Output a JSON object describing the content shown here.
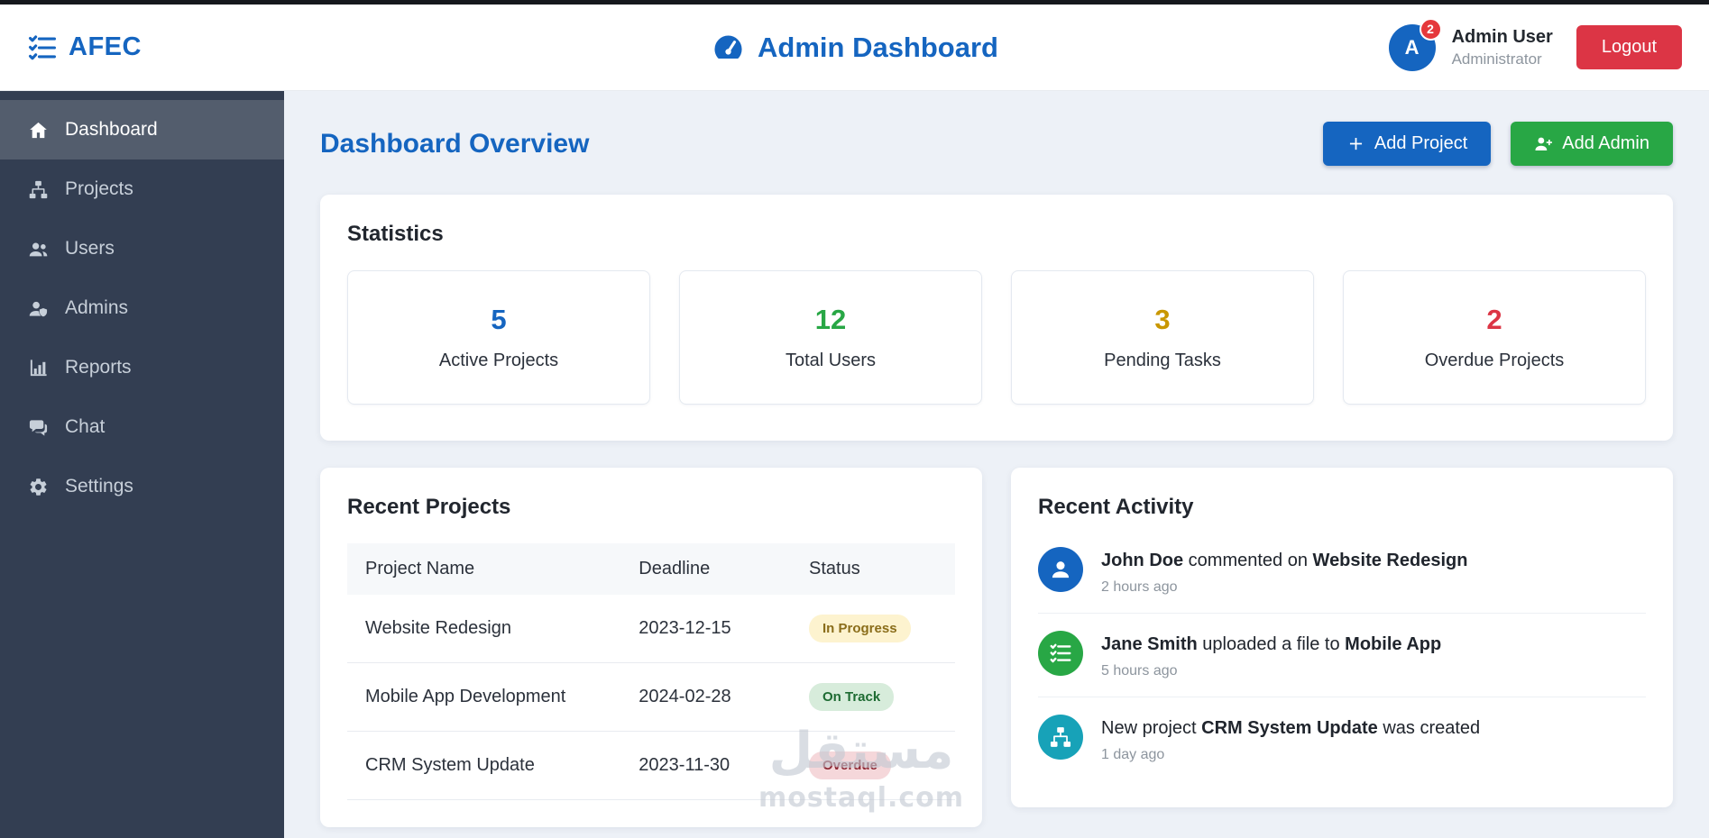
{
  "header": {
    "brand": "AFEC",
    "brand_icon": "list-check",
    "title": "Admin Dashboard",
    "title_icon": "tachometer",
    "user": {
      "initial": "A",
      "badge": "2",
      "name": "Admin User",
      "role": "Administrator"
    },
    "logout_label": "Logout"
  },
  "sidebar": {
    "items": [
      {
        "label": "Dashboard",
        "icon": "home",
        "active": true
      },
      {
        "label": "Projects",
        "icon": "diagram",
        "active": false
      },
      {
        "label": "Users",
        "icon": "users",
        "active": false
      },
      {
        "label": "Admins",
        "icon": "user-shield",
        "active": false
      },
      {
        "label": "Reports",
        "icon": "chart",
        "active": false
      },
      {
        "label": "Chat",
        "icon": "chat",
        "active": false
      },
      {
        "label": "Settings",
        "icon": "gear",
        "active": false
      }
    ]
  },
  "main": {
    "page_title": "Dashboard Overview",
    "buttons": {
      "add_project": {
        "label": "Add Project",
        "icon": "plus",
        "color": "#1565c0"
      },
      "add_admin": {
        "label": "Add Admin",
        "icon": "user-plus",
        "color": "#28a745"
      }
    },
    "statistics": {
      "title": "Statistics",
      "cards": [
        {
          "value": "5",
          "label": "Active Projects",
          "color": "#1565c0"
        },
        {
          "value": "12",
          "label": "Total Users",
          "color": "#28a745"
        },
        {
          "value": "3",
          "label": "Pending Tasks",
          "color": "#c99700"
        },
        {
          "value": "2",
          "label": "Overdue Projects",
          "color": "#dc3545"
        }
      ]
    },
    "recent_projects": {
      "title": "Recent Projects",
      "columns": [
        "Project Name",
        "Deadline",
        "Status"
      ],
      "rows": [
        {
          "name": "Website Redesign",
          "deadline": "2023-12-15",
          "status": "In Progress",
          "status_type": "warning"
        },
        {
          "name": "Mobile App Development",
          "deadline": "2024-02-28",
          "status": "On Track",
          "status_type": "success"
        },
        {
          "name": "CRM System Update",
          "deadline": "2023-11-30",
          "status": "Overdue",
          "status_type": "danger"
        }
      ]
    },
    "recent_activity": {
      "title": "Recent Activity",
      "items": [
        {
          "icon": "user",
          "icon_color": "#1565c0",
          "segments": [
            {
              "text": "John Doe",
              "bold": true
            },
            {
              "text": " commented on ",
              "bold": false
            },
            {
              "text": "Website Redesign",
              "bold": true
            }
          ],
          "time": "2 hours ago"
        },
        {
          "icon": "list-check",
          "icon_color": "#28a745",
          "segments": [
            {
              "text": "Jane Smith",
              "bold": true
            },
            {
              "text": " uploaded a file to ",
              "bold": false
            },
            {
              "text": "Mobile App",
              "bold": true
            }
          ],
          "time": "5 hours ago"
        },
        {
          "icon": "diagram",
          "icon_color": "#17a2b8",
          "segments": [
            {
              "text": "New project ",
              "bold": false
            },
            {
              "text": "CRM System Update",
              "bold": true
            },
            {
              "text": " was created",
              "bold": false
            }
          ],
          "time": "1 day ago"
        }
      ]
    }
  },
  "watermark": {
    "line1": "مستقل",
    "line2": "mostaql.com"
  }
}
